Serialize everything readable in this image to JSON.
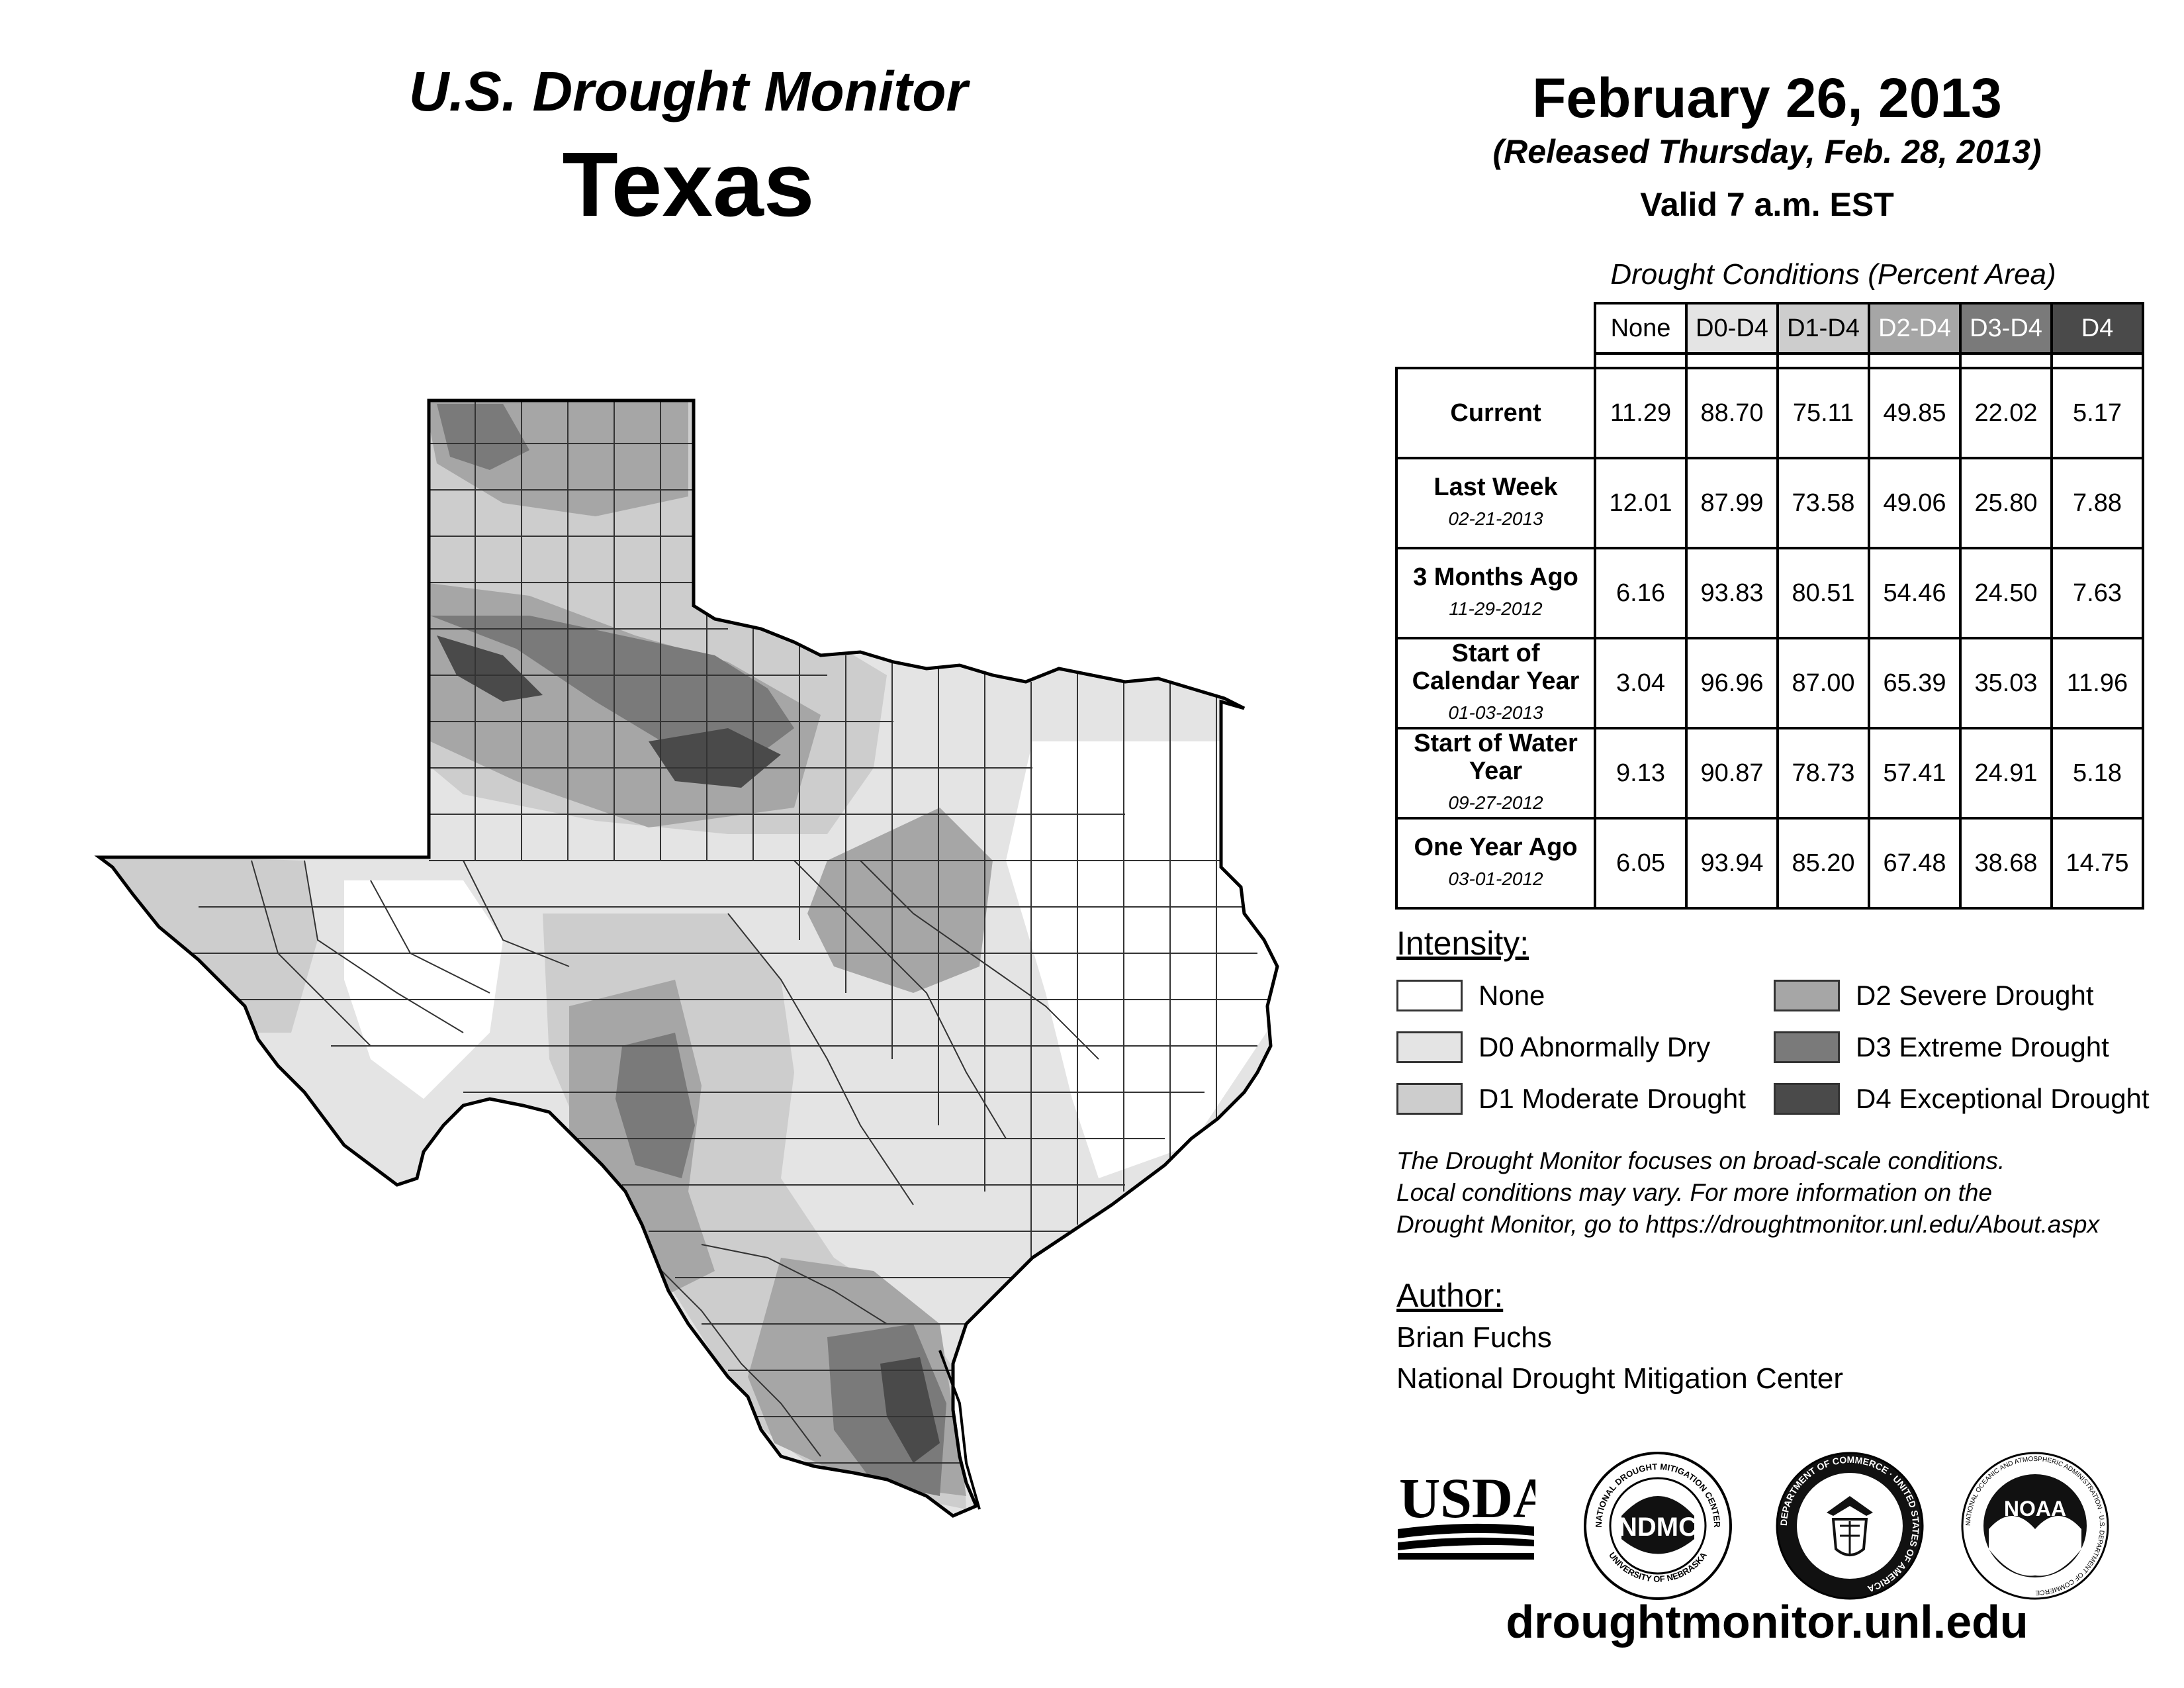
{
  "header": {
    "subtitle": "U.S. Drought Monitor",
    "title": "Texas",
    "date": "February 26, 2013",
    "released": "(Released Thursday, Feb. 28, 2013)",
    "valid": "Valid 7 a.m. EST"
  },
  "conditions": {
    "title": "Drought Conditions (Percent Area)",
    "columns": [
      "None",
      "D0-D4",
      "D1-D4",
      "D2-D4",
      "D3-D4",
      "D4"
    ],
    "rows": [
      {
        "label": "Current",
        "date": "",
        "values": [
          "11.29",
          "88.70",
          "75.11",
          "49.85",
          "22.02",
          "5.17"
        ]
      },
      {
        "label": "Last Week",
        "date": "02-21-2013",
        "values": [
          "12.01",
          "87.99",
          "73.58",
          "49.06",
          "25.80",
          "7.88"
        ]
      },
      {
        "label": "3 Months Ago",
        "date": "11-29-2012",
        "values": [
          "6.16",
          "93.83",
          "80.51",
          "54.46",
          "24.50",
          "7.63"
        ]
      },
      {
        "label": "Start of Calendar Year",
        "date": "01-03-2013",
        "values": [
          "3.04",
          "96.96",
          "87.00",
          "65.39",
          "35.03",
          "11.96"
        ]
      },
      {
        "label": "Start of Water Year",
        "date": "09-27-2012",
        "values": [
          "9.13",
          "90.87",
          "78.73",
          "57.41",
          "24.91",
          "5.18"
        ]
      },
      {
        "label": "One Year Ago",
        "date": "03-01-2012",
        "values": [
          "6.05",
          "93.94",
          "85.20",
          "67.48",
          "38.68",
          "14.75"
        ]
      }
    ]
  },
  "intensity": {
    "heading": "Intensity:",
    "items": [
      {
        "label": "None",
        "color": "#ffffff"
      },
      {
        "label": "D0 Abnormally Dry",
        "color": "#e4e4e4"
      },
      {
        "label": "D1 Moderate Drought",
        "color": "#cdcdcd"
      },
      {
        "label": "D2 Severe Drought",
        "color": "#a6a6a6"
      },
      {
        "label": "D3 Extreme Drought",
        "color": "#7a7a7a"
      },
      {
        "label": "D4 Exceptional Drought",
        "color": "#4a4a4a"
      }
    ]
  },
  "disclaimer": [
    "The Drought Monitor focuses on broad-scale conditions.",
    "Local conditions may vary. For more information on the",
    "Drought Monitor, go to https://droughtmonitor.unl.edu/About.aspx"
  ],
  "author": {
    "heading": "Author:",
    "name": "Brian Fuchs",
    "org": "National Drought Mitigation Center"
  },
  "logos": {
    "usda": "USDA",
    "ndmc": "NDMC",
    "ndmc_ring_top": "NATIONAL DROUGHT MITIGATION CENTER",
    "ndmc_ring_bottom": "UNIVERSITY OF NEBRASKA",
    "doc_ring": "DEPARTMENT OF COMMERCE · UNITED STATES OF AMERICA",
    "noaa": "NOAA",
    "noaa_ring": "NATIONAL OCEANIC AND ATMOSPHERIC ADMINISTRATION · U.S. DEPARTMENT OF COMMERCE"
  },
  "url": "droughtmonitor.unl.edu"
}
